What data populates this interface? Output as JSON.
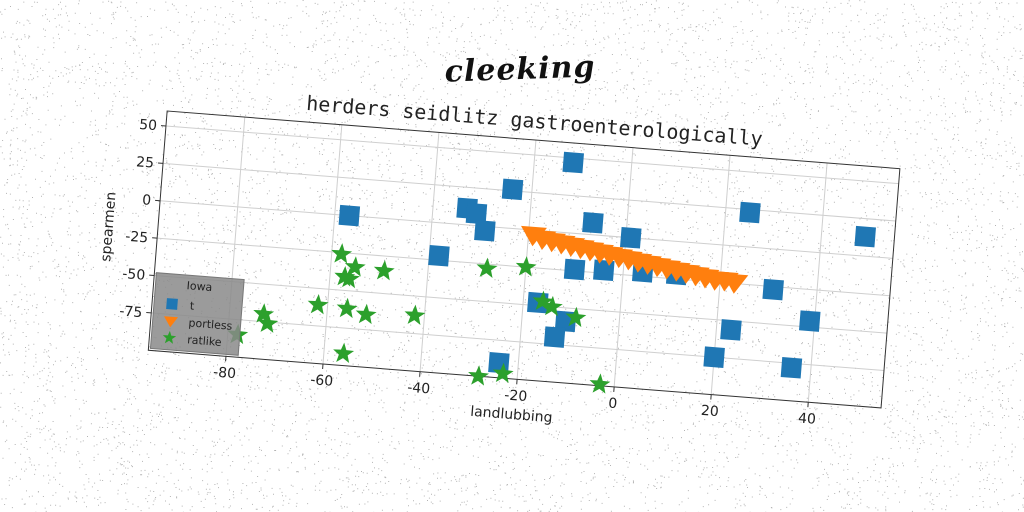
{
  "suptitle": "cleeking",
  "chart_data": {
    "type": "scatter",
    "title": "herders seidlitz gastroenterologically",
    "xlabel": "landlubbing",
    "ylabel": "spearmen",
    "xlim": [
      -96,
      55
    ],
    "ylim": [
      -100,
      60
    ],
    "xticks": [
      -80,
      -60,
      -40,
      -20,
      0,
      20,
      40
    ],
    "yticks": [
      50,
      25,
      0,
      -25,
      -50,
      -75
    ],
    "grid": true,
    "legend": {
      "title": "Iowa",
      "placement": "lower-left"
    },
    "series": [
      {
        "name": "t",
        "marker": "square",
        "color": "#1f77b4",
        "x": [
          -12,
          -24,
          49,
          25,
          -57,
          -33,
          -31,
          -29,
          -38,
          -7,
          1,
          -10,
          -4,
          4,
          11,
          31,
          39,
          23,
          -17,
          -11,
          -13,
          20,
          36,
          -24
        ],
        "y": [
          47,
          26,
          13,
          23,
          0,
          11,
          8,
          -3,
          -22,
          8,
          0,
          -24,
          -23,
          -22,
          -22,
          -27,
          -46,
          -56,
          -48,
          -59,
          -70,
          -75,
          -78,
          -90
        ]
      },
      {
        "name": "portless",
        "marker": "triangle-down",
        "color": "#ff7f0e",
        "x": [
          -19,
          -17,
          -15,
          -13,
          -11,
          -9,
          -7,
          -5,
          -3,
          -1,
          1,
          3,
          5,
          7,
          9,
          11,
          13,
          15,
          17,
          19,
          21,
          23
        ],
        "y": [
          -3,
          -5,
          -6,
          -7,
          -8,
          -9,
          -10,
          -11,
          -12,
          -13,
          -14,
          -15,
          -16,
          -17,
          -18,
          -19,
          -20,
          -21,
          -22,
          -23,
          -23,
          -24
        ]
      },
      {
        "name": "ratlike",
        "marker": "star",
        "color": "#2ca02c",
        "x": [
          -58,
          -55,
          -56,
          -49,
          -28,
          -20,
          -57,
          -62,
          -56,
          -52,
          -42,
          -73,
          -72,
          -78,
          -56,
          -16,
          -14,
          -9,
          -28,
          -23,
          -3
        ],
        "y": [
          -26,
          -34,
          -42,
          -35,
          -28,
          -25,
          -41,
          -61,
          -62,
          -65,
          -63,
          -70,
          -76,
          -85,
          -92,
          -47,
          -50,
          -56,
          -100,
          -97,
          -99
        ]
      }
    ]
  }
}
